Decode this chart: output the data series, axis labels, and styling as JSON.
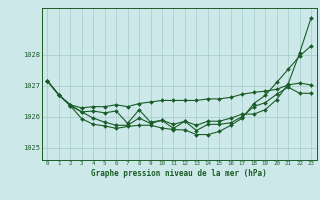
{
  "title": "Graphe pression niveau de la mer (hPa)",
  "bg_color": "#cce8e8",
  "grid_color": "#aacece",
  "line_color": "#1a5c28",
  "x_ticks": [
    0,
    1,
    2,
    3,
    4,
    5,
    6,
    7,
    8,
    9,
    10,
    11,
    12,
    13,
    14,
    15,
    16,
    17,
    18,
    19,
    20,
    21,
    22,
    23
  ],
  "y_ticks": [
    1025,
    1026,
    1027,
    1028
  ],
  "ylim": [
    1024.6,
    1029.5
  ],
  "xlim": [
    -0.5,
    23.5
  ],
  "series": {
    "line1": [
      1027.15,
      1026.7,
      1026.35,
      1025.93,
      1025.75,
      1025.7,
      1025.62,
      1025.68,
      1025.72,
      1025.72,
      1025.63,
      1025.58,
      1025.57,
      1025.42,
      1025.42,
      1025.52,
      1025.72,
      1025.95,
      1026.42,
      1026.68,
      1027.1,
      1027.52,
      1027.95,
      1028.28
    ],
    "line2": [
      1027.15,
      1026.7,
      1026.35,
      1026.15,
      1026.18,
      1026.12,
      1026.18,
      1025.78,
      1026.22,
      1025.82,
      1025.88,
      1025.75,
      1025.85,
      1025.55,
      1025.75,
      1025.75,
      1025.8,
      1026.0,
      1026.32,
      1026.45,
      1026.72,
      1026.95,
      1026.75,
      1026.75
    ],
    "line3": [
      1027.15,
      1026.7,
      1026.38,
      1026.28,
      1026.32,
      1026.32,
      1026.38,
      1026.32,
      1026.42,
      1026.47,
      1026.52,
      1026.52,
      1026.52,
      1026.52,
      1026.57,
      1026.57,
      1026.62,
      1026.72,
      1026.78,
      1026.82,
      1026.88,
      1027.02,
      1027.08,
      1027.02
    ],
    "line4": [
      1027.15,
      1026.7,
      1026.38,
      1026.15,
      1025.95,
      1025.82,
      1025.72,
      1025.72,
      1025.95,
      1025.78,
      1025.88,
      1025.62,
      1025.85,
      1025.72,
      1025.85,
      1025.85,
      1025.95,
      1026.08,
      1026.08,
      1026.22,
      1026.55,
      1027.05,
      1028.05,
      1029.18
    ]
  }
}
